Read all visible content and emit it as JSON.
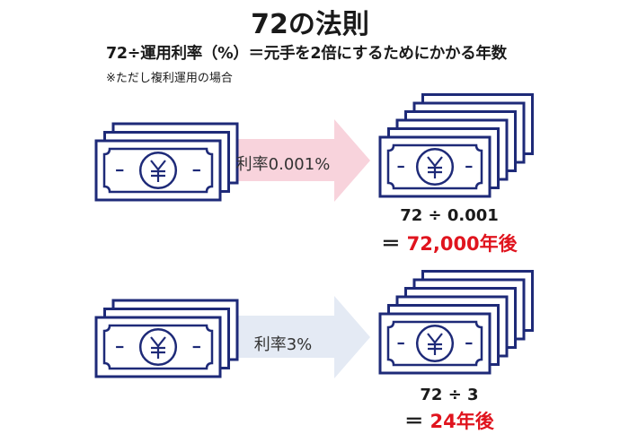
{
  "title": "72の法則",
  "formula": "72÷運用利率（%）＝元手を2倍にするためにかかる年数",
  "note": "※ただし複利運用の場合",
  "colors": {
    "bill": "#1e2a78",
    "arrow_low": "#f8d3dc",
    "arrow_high": "#e4eaf4",
    "result": "#e0141e"
  },
  "rows": [
    {
      "rate_label": "利率0.001%",
      "calc": "72 ÷ 0.001",
      "equals": "＝",
      "result": "72,000年後",
      "start_bills": 3,
      "end_bills": 6
    },
    {
      "rate_label": "利率3%",
      "calc": "72 ÷ 3",
      "equals": "＝",
      "result": "24年後",
      "start_bills": 3,
      "end_bills": 6
    }
  ],
  "icons": {
    "bill": "yen-banknote-icon",
    "arrow": "arrow-right-icon"
  }
}
